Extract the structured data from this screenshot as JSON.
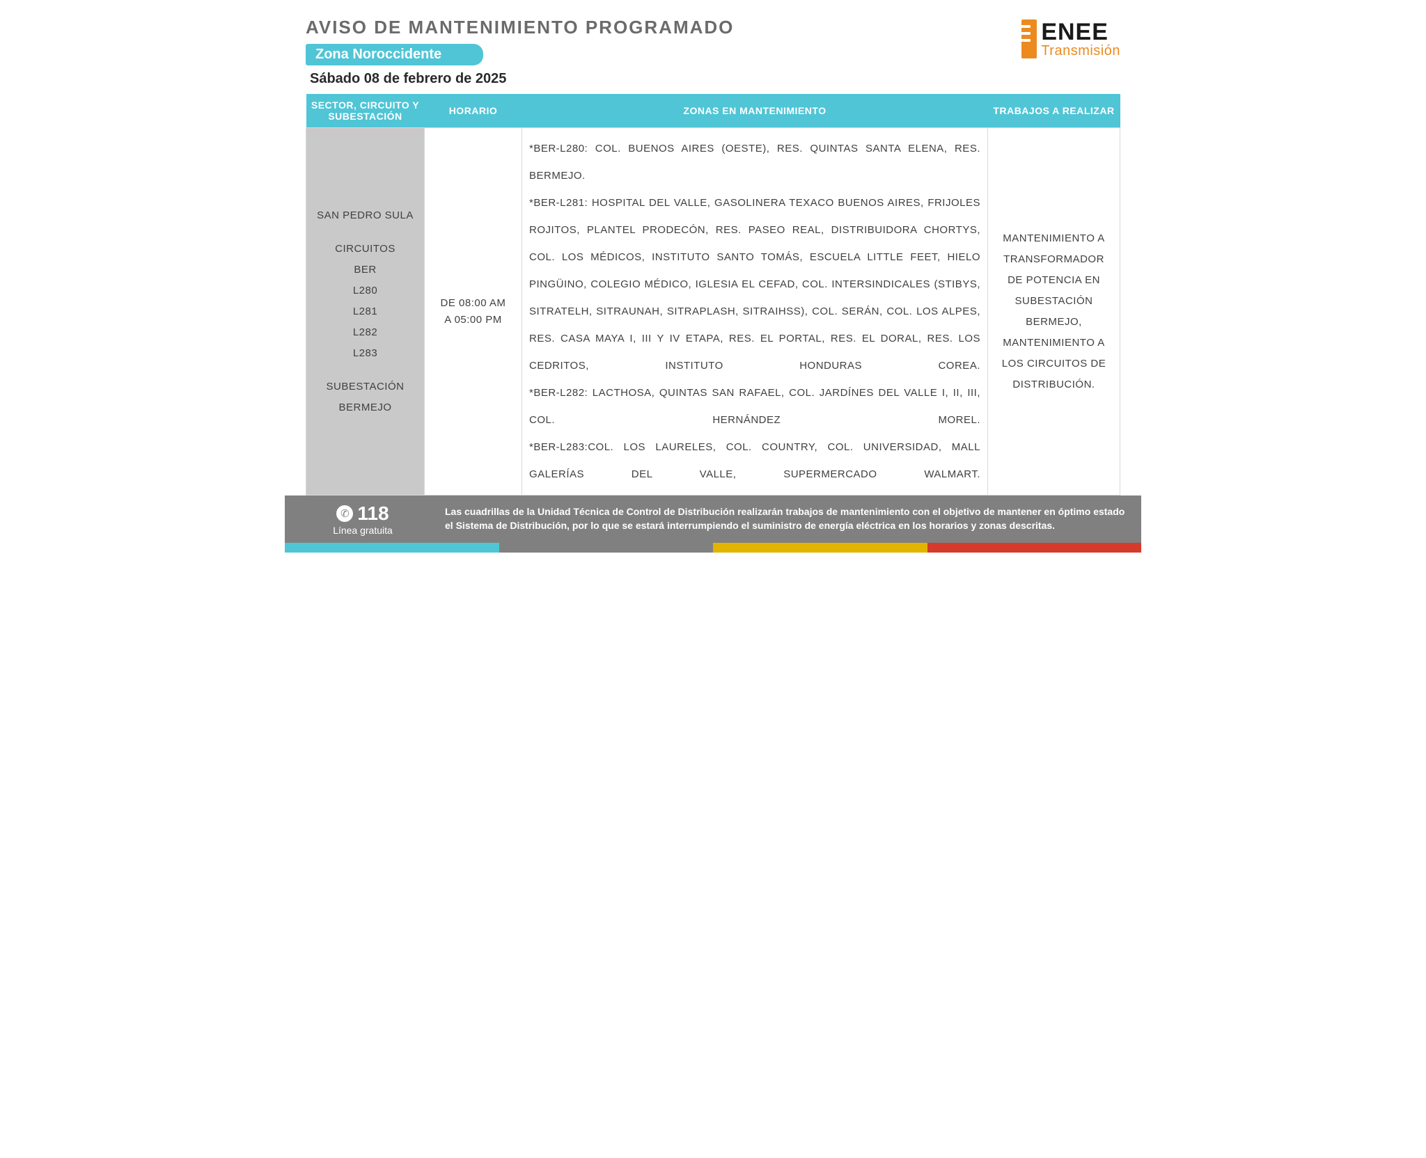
{
  "header": {
    "title": "AVISO DE MANTENIMIENTO PROGRAMADO",
    "zone": "Zona Noroccidente",
    "date": "Sábado 08  de febrero de 2025"
  },
  "logo": {
    "name": "ENEE",
    "sub": "Transmisión",
    "accent_color": "#ec8a1f"
  },
  "columns": {
    "c1": "SECTOR, CIRCUITO Y SUBESTACIÓN",
    "c2": "HORARIO",
    "c3": "ZONAS EN MANTENIMIENTO",
    "c4": "TRABAJOS A REALIZAR"
  },
  "row": {
    "sector_city": "SAN PEDRO SULA",
    "sector_circuits_label": "CIRCUITOS",
    "sector_circuits_prefix": "BER",
    "sector_circuits": [
      "L280",
      "L281",
      "L282",
      "L283"
    ],
    "sector_substation_label": "SUBESTACIÓN",
    "sector_substation": "BERMEJO",
    "horario_line1": "DE 08:00 AM",
    "horario_line2": "A 05:00 PM",
    "zonas": [
      "*BER-L280: COL. BUENOS AIRES (OESTE),  RES. QUINTAS SANTA ELENA,  RES. BERMEJO.",
      "*BER-L281: HOSPITAL DEL VALLE, GASOLINERA TEXACO BUENOS AIRES, FRIJOLES ROJITOS, PLANTEL PRODECÓN, RES. PASEO REAL, DISTRIBUIDORA CHORTYS, COL. LOS MÉDICOS, INSTITUTO SANTO TOMÁS, ESCUELA LITTLE FEET, HIELO PINGÜINO, COLEGIO MÉDICO, IGLESIA EL CEFAD, COL. INTERSINDICALES (STIBYS, SITRATELH, SITRAUNAH, SITRAPLASH, SITRAIHSS), COL. SERÁN, COL. LOS ALPES, RES. CASA MAYA I, III Y IV ETAPA, RES. EL PORTAL, RES. EL DORAL, RES. LOS CEDRITOS, INSTITUTO HONDURAS COREA.",
      "*BER-L282: LACTHOSA, QUINTAS SAN RAFAEL, COL. JARDÍNES DEL VALLE I, II, III, COL. HERNÁNDEZ MOREL.",
      "*BER-L283:COL. LOS LAURELES, COL. COUNTRY, COL. UNIVERSIDAD, MALL GALERÍAS DEL VALLE, SUPERMERCADO WALMART."
    ],
    "trabajos": "MANTENIMIENTO A TRANSFORMADOR DE POTENCIA EN SUBESTACIÓN BERMEJO, MANTENIMIENTO A LOS CIRCUITOS DE DISTRIBUCIÓN."
  },
  "footer": {
    "hotline_number": "118",
    "hotline_label": "Línea gratuita",
    "text": "Las cuadrillas de la Unidad Técnica de Control de Distribución realizarán trabajos de mantenimiento con el objetivo de mantener en óptimo estado el Sistema de Distribución, por lo que se estará interrumpiendo el suministro de energía eléctrica en los horarios y zonas descritas.",
    "stripe_colors": [
      "#4fc5d6",
      "#808080",
      "#e2b400",
      "#d63a2a"
    ]
  },
  "colors": {
    "header_bg": "#4fc5d6",
    "sector_bg": "#c9c9c9",
    "footer_bg": "#808080"
  }
}
